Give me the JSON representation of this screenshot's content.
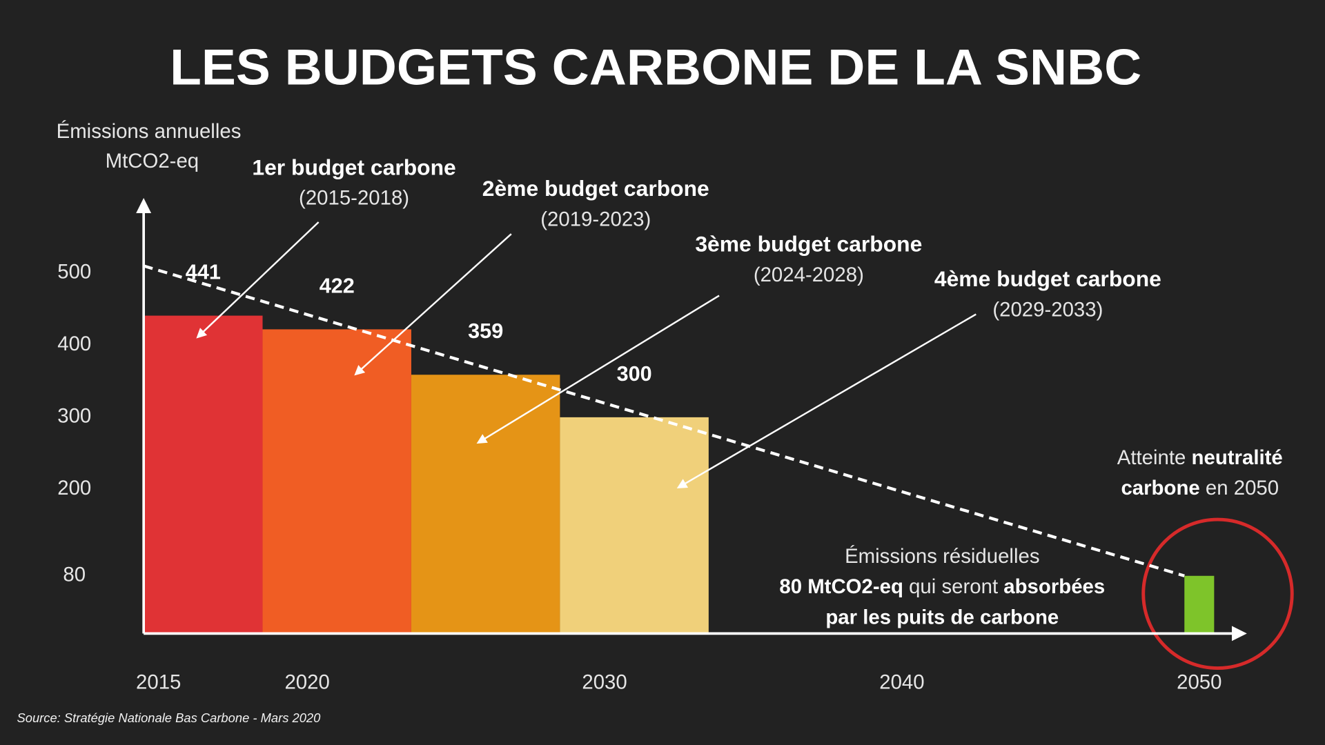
{
  "chart_data": {
    "type": "budget-bar",
    "title": "LES BUDGETS CARBONE DE LA SNBC",
    "y_axis_label": [
      "Émissions annuelles",
      "MtCO2-eq"
    ],
    "xlim": [
      2015,
      2052
    ],
    "xticks": [
      2015,
      2020,
      2030,
      2040,
      2050
    ],
    "ylim": [
      0,
      600
    ],
    "yticks": [
      80,
      200,
      300,
      400,
      500
    ],
    "bars": [
      {
        "name": "1er budget carbone",
        "period": "(2015-2018)",
        "x": 2015,
        "x_end": 2019,
        "value": 441,
        "color": "#e03335"
      },
      {
        "name": "2ème budget carbone",
        "period": "(2019-2023)",
        "x": 2019,
        "x_end": 2024,
        "value": 422,
        "color": "#f05d24"
      },
      {
        "name": "3ème budget carbone",
        "period": "(2024-2028)",
        "x": 2024,
        "x_end": 2029,
        "value": 359,
        "color": "#e59416"
      },
      {
        "name": "4ème budget carbone",
        "period": "(2029-2033)",
        "x": 2029,
        "x_end": 2034,
        "value": 300,
        "color": "#f0d07a"
      },
      {
        "x": 2050,
        "x_end": 2051,
        "value": 80,
        "color": "#7ec42a"
      }
    ],
    "trend": {
      "x": [
        2015,
        2050
      ],
      "values": [
        510,
        80
      ],
      "color": "#ffffff"
    },
    "residual_note": [
      [
        {
          "text": "Émissions résiduelles",
          "bold": false
        }
      ],
      [
        {
          "text": "80 MtCO2-eq",
          "bold": true
        },
        {
          "text": " qui seront ",
          "bold": false
        },
        {
          "text": "absorbées",
          "bold": true
        }
      ],
      [
        {
          "text": "par les puits de carbone",
          "bold": true
        }
      ]
    ],
    "neutrality_note": [
      [
        {
          "text": "Atteinte ",
          "bold": false
        },
        {
          "text": "neutralité",
          "bold": true
        }
      ],
      [
        {
          "text": "carbone",
          "bold": true
        },
        {
          "text": " en 2050",
          "bold": false
        }
      ]
    ],
    "source": "Source: Stratégie Nationale Bas Carbone - Mars 2020"
  }
}
